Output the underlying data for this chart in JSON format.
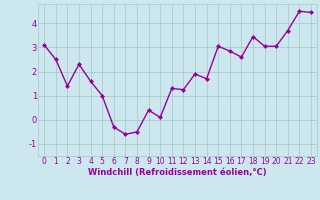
{
  "x": [
    0,
    1,
    2,
    3,
    4,
    5,
    6,
    7,
    8,
    9,
    10,
    11,
    12,
    13,
    14,
    15,
    16,
    17,
    18,
    19,
    20,
    21,
    22,
    23
  ],
  "y": [
    3.1,
    2.5,
    1.4,
    2.3,
    1.6,
    1.0,
    -0.3,
    -0.6,
    -0.5,
    0.4,
    0.1,
    1.3,
    1.25,
    1.9,
    1.7,
    3.05,
    2.85,
    2.6,
    3.45,
    3.05,
    3.05,
    3.7,
    4.5,
    4.45
  ],
  "line_color": "#990099",
  "marker": "D",
  "marker_size": 2.0,
  "bg_color": "#cce8ee",
  "grid_color": "#aacccc",
  "xlabel": "Windchill (Refroidissement éolien,°C)",
  "xlabel_color": "#990099",
  "tick_color": "#990099",
  "ylim": [
    -1.5,
    4.8
  ],
  "xlim": [
    -0.5,
    23.5
  ],
  "yticks": [
    -1,
    0,
    1,
    2,
    3,
    4
  ],
  "xticks": [
    0,
    1,
    2,
    3,
    4,
    5,
    6,
    7,
    8,
    9,
    10,
    11,
    12,
    13,
    14,
    15,
    16,
    17,
    18,
    19,
    20,
    21,
    22,
    23
  ],
  "line_width": 1.0,
  "tick_fontsize": 5.5,
  "xlabel_fontsize": 6.0
}
